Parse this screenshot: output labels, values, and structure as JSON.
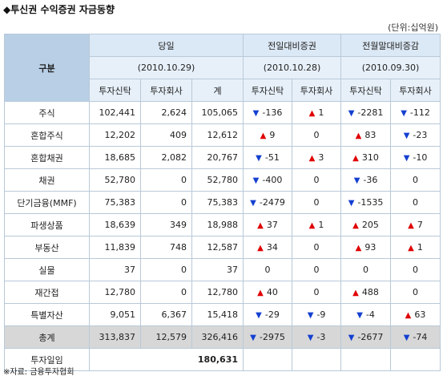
{
  "title": "◆투신권 수익증권 자금동향",
  "unit": "(단위:십억원)",
  "source": "※자료: 금융투자협회",
  "header": {
    "gubun": "구분",
    "groups": [
      {
        "label": "당일",
        "date": "(2010.10.29)",
        "subs": [
          "투자신탁",
          "투자회사",
          "계"
        ]
      },
      {
        "label": "전일대비증권",
        "date": "(2010.10.28)",
        "subs": [
          "투자신탁",
          "투자회사"
        ]
      },
      {
        "label": "전월말대비증감",
        "date": "(2010.09.30)",
        "subs": [
          "투자신탁",
          "투자회사"
        ]
      }
    ]
  },
  "rows": [
    {
      "label": "주식",
      "trust": "102,441",
      "company": "2,624",
      "total": "105,065",
      "d1": {
        "dir": "down",
        "v": "-136"
      },
      "d2": {
        "dir": "up",
        "v": "1"
      },
      "m1": {
        "dir": "down",
        "v": "-2281"
      },
      "m2": {
        "dir": "down",
        "v": "-112"
      }
    },
    {
      "label": "혼합주식",
      "trust": "12,202",
      "company": "409",
      "total": "12,612",
      "d1": {
        "dir": "up",
        "v": "9"
      },
      "d2": {
        "dir": "none",
        "v": "0"
      },
      "m1": {
        "dir": "up",
        "v": "83"
      },
      "m2": {
        "dir": "down",
        "v": "-23"
      }
    },
    {
      "label": "혼합채권",
      "trust": "18,685",
      "company": "2,082",
      "total": "20,767",
      "d1": {
        "dir": "down",
        "v": "-51"
      },
      "d2": {
        "dir": "up",
        "v": "3"
      },
      "m1": {
        "dir": "up",
        "v": "310"
      },
      "m2": {
        "dir": "down",
        "v": "-10"
      }
    },
    {
      "label": "채권",
      "trust": "52,780",
      "company": "0",
      "total": "52,780",
      "d1": {
        "dir": "down",
        "v": "-400"
      },
      "d2": {
        "dir": "none",
        "v": "0"
      },
      "m1": {
        "dir": "down",
        "v": "-36"
      },
      "m2": {
        "dir": "none",
        "v": "0"
      }
    },
    {
      "label": "단기금융(MMF)",
      "trust": "75,383",
      "company": "0",
      "total": "75,383",
      "d1": {
        "dir": "down",
        "v": "-2479"
      },
      "d2": {
        "dir": "none",
        "v": "0"
      },
      "m1": {
        "dir": "down",
        "v": "-1535"
      },
      "m2": {
        "dir": "none",
        "v": "0"
      }
    },
    {
      "label": "파생상품",
      "trust": "18,639",
      "company": "349",
      "total": "18,988",
      "d1": {
        "dir": "up",
        "v": "37"
      },
      "d2": {
        "dir": "up",
        "v": "1"
      },
      "m1": {
        "dir": "up",
        "v": "205"
      },
      "m2": {
        "dir": "up",
        "v": "7"
      }
    },
    {
      "label": "부동산",
      "trust": "11,839",
      "company": "748",
      "total": "12,587",
      "d1": {
        "dir": "up",
        "v": "34"
      },
      "d2": {
        "dir": "none",
        "v": "0"
      },
      "m1": {
        "dir": "up",
        "v": "93"
      },
      "m2": {
        "dir": "up",
        "v": "1"
      }
    },
    {
      "label": "실물",
      "trust": "37",
      "company": "0",
      "total": "37",
      "d1": {
        "dir": "none",
        "v": "0"
      },
      "d2": {
        "dir": "none",
        "v": "0"
      },
      "m1": {
        "dir": "none",
        "v": "0"
      },
      "m2": {
        "dir": "none",
        "v": "0"
      }
    },
    {
      "label": "재간접",
      "trust": "12,780",
      "company": "0",
      "total": "12,780",
      "d1": {
        "dir": "up",
        "v": "40"
      },
      "d2": {
        "dir": "none",
        "v": "0"
      },
      "m1": {
        "dir": "up",
        "v": "488"
      },
      "m2": {
        "dir": "none",
        "v": "0"
      }
    },
    {
      "label": "특별자산",
      "trust": "9,051",
      "company": "6,367",
      "total": "15,418",
      "d1": {
        "dir": "down",
        "v": "-29"
      },
      "d2": {
        "dir": "down",
        "v": "-9"
      },
      "m1": {
        "dir": "down",
        "v": "-4"
      },
      "m2": {
        "dir": "up",
        "v": "63"
      }
    }
  ],
  "total_row": {
    "label": "총계",
    "trust": "313,837",
    "company": "12,579",
    "total": "326,416",
    "d1": {
      "dir": "down",
      "v": "-2975"
    },
    "d2": {
      "dir": "down",
      "v": "-3"
    },
    "m1": {
      "dir": "down",
      "v": "-2677"
    },
    "m2": {
      "dir": "down",
      "v": "-74"
    }
  },
  "investment_row": {
    "label": "투자일임",
    "value": "180,631"
  },
  "colors": {
    "up": "#e00000",
    "down": "#1440d0",
    "header_bg": "#b8cfe6",
    "subheader_bg": "#e7f0f9",
    "total_bg": "#d7d7d7"
  }
}
